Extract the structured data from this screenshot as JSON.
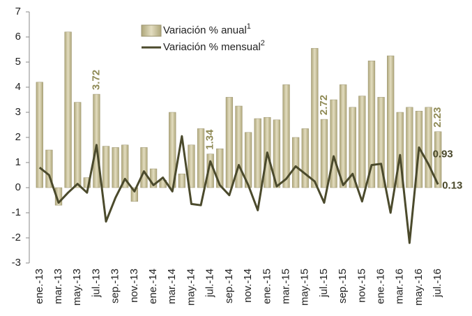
{
  "chart_data": {
    "type": "bar-line",
    "categories": [
      "ene.-13",
      null,
      "mar.-13",
      null,
      "may.-13",
      null,
      "jul.-13",
      null,
      "sep.-13",
      null,
      "nov.-13",
      null,
      "ene.-14",
      null,
      "mar.-14",
      null,
      "may.-14",
      null,
      "jul.-14",
      null,
      "sep.-14",
      null,
      "nov.-14",
      null,
      "ene.-15",
      null,
      "mar.-15",
      null,
      "may.-15",
      null,
      "jul.-15",
      null,
      "sep.-15",
      null,
      "nov.-15",
      null,
      "ene.-16",
      null,
      "mar.-16",
      null,
      "may.-16",
      null,
      "jul.-16"
    ],
    "series": [
      {
        "name": "Variación % anual",
        "note": "1",
        "type": "bar",
        "color": "#c9c29c",
        "label_color": "#8f8a55",
        "values": [
          4.2,
          1.5,
          -0.7,
          6.2,
          3.4,
          0.4,
          3.72,
          1.65,
          1.6,
          1.7,
          -0.55,
          1.6,
          0.75,
          0.3,
          3.0,
          0.55,
          1.7,
          2.35,
          1.34,
          1.55,
          3.6,
          3.25,
          2.2,
          2.75,
          2.8,
          2.7,
          4.1,
          2.0,
          2.35,
          5.55,
          2.72,
          3.5,
          4.1,
          3.2,
          3.65,
          5.05,
          3.6,
          5.25,
          3.0,
          3.2,
          3.05,
          3.2,
          2.23
        ],
        "value_labels": [
          null,
          null,
          null,
          null,
          null,
          null,
          "3.72",
          null,
          null,
          null,
          null,
          null,
          null,
          null,
          null,
          null,
          null,
          null,
          "1.34",
          null,
          null,
          null,
          null,
          null,
          null,
          null,
          null,
          null,
          null,
          null,
          "2.72",
          null,
          null,
          null,
          null,
          null,
          null,
          null,
          null,
          null,
          null,
          null,
          "2.23"
        ]
      },
      {
        "name": "Variación % mensual",
        "note": "2",
        "type": "line",
        "color": "#4b4a2c",
        "label_color": "#4b4a2c",
        "values": [
          0.8,
          0.5,
          -0.6,
          -0.2,
          0.15,
          -0.2,
          1.7,
          -1.35,
          -0.4,
          0.35,
          -0.15,
          0.65,
          0.1,
          0.4,
          -0.15,
          2.05,
          -0.65,
          -0.7,
          1.05,
          0.1,
          -0.3,
          0.9,
          0.1,
          -0.9,
          1.4,
          0.05,
          0.35,
          0.85,
          0.55,
          0.25,
          -0.6,
          1.25,
          0.1,
          0.55,
          -0.55,
          0.9,
          0.95,
          -1.0,
          1.3,
          -2.2,
          1.6,
          0.93,
          0.13
        ],
        "value_labels": [
          null,
          null,
          null,
          null,
          null,
          null,
          null,
          null,
          null,
          null,
          null,
          null,
          null,
          null,
          null,
          null,
          null,
          null,
          null,
          null,
          null,
          null,
          null,
          null,
          null,
          null,
          null,
          null,
          null,
          null,
          null,
          null,
          null,
          null,
          null,
          null,
          null,
          null,
          null,
          null,
          null,
          "0.93",
          "0.13"
        ]
      }
    ],
    "ylim": [
      -3,
      7
    ],
    "yticks": [
      -3,
      -2,
      -1,
      0,
      1,
      2,
      3,
      4,
      5,
      6,
      7
    ],
    "grid": false
  }
}
